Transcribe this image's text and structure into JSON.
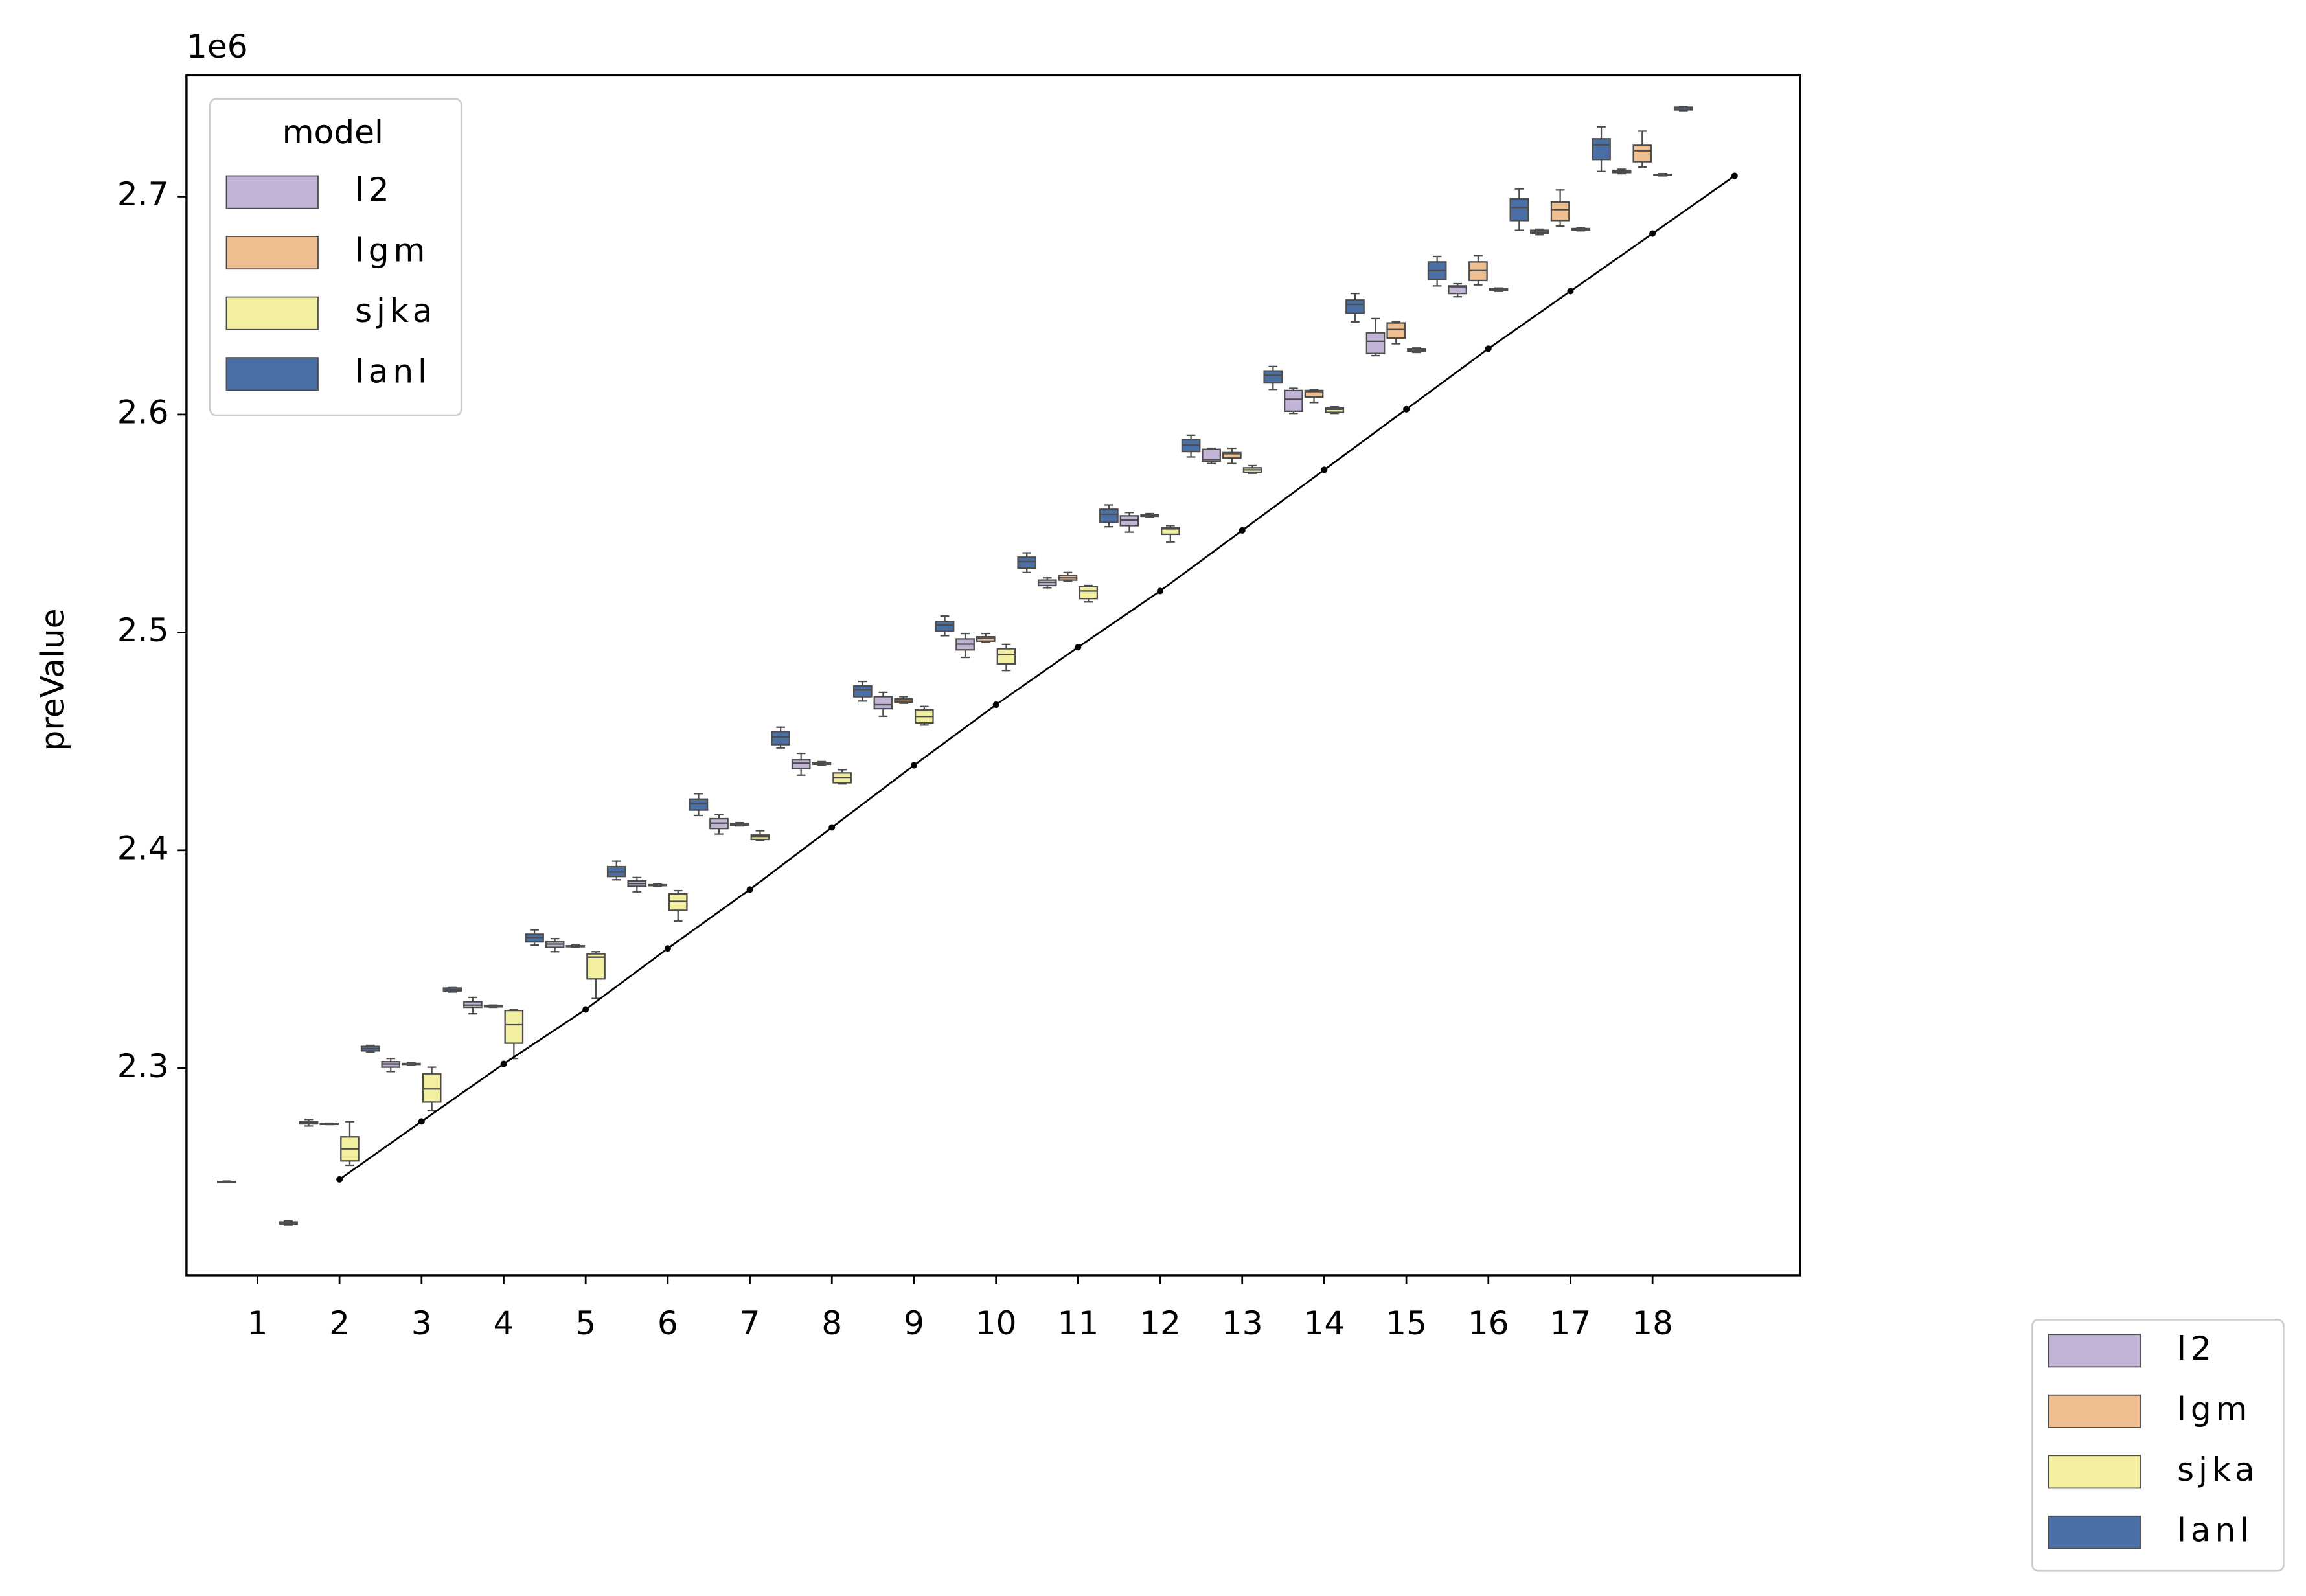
{
  "chart_data": {
    "type": "box",
    "ylabel": "preValue",
    "offset_text": "1e6",
    "categories": [
      1,
      2,
      3,
      4,
      5,
      6,
      7,
      8,
      9,
      10,
      11,
      12,
      13,
      14,
      15,
      16,
      17,
      18,
      null
    ],
    "ylim": [
      2.205,
      2.7556
    ],
    "yticks": [
      2.3,
      2.4,
      2.5,
      2.6,
      2.7
    ],
    "legends": [
      {
        "title": "model",
        "loc": "upper left"
      },
      {
        "loc": "outside lower right"
      }
    ],
    "series": [
      {
        "name": "l2",
        "color": "#c2b4d6",
        "values": [
          {
            "low": 2.2478,
            "q1": 2.248,
            "median": 2.248,
            "q3": 2.248,
            "high": 2.2482
          },
          {
            "low": 2.2735,
            "q1": 2.2745,
            "median": 2.275,
            "q3": 2.2755,
            "high": 2.2765
          },
          {
            "low": 2.2985,
            "q1": 2.3005,
            "median": 2.302,
            "q3": 2.303,
            "high": 2.3045
          },
          {
            "low": 2.325,
            "q1": 2.328,
            "median": 2.329,
            "q3": 2.3305,
            "high": 2.3325
          },
          {
            "low": 2.3535,
            "q1": 2.3555,
            "median": 2.357,
            "q3": 2.358,
            "high": 2.3595
          },
          {
            "low": 2.381,
            "q1": 2.3835,
            "median": 2.3847,
            "q3": 2.386,
            "high": 2.3875
          },
          {
            "low": 2.4075,
            "q1": 2.41,
            "median": 2.4125,
            "q3": 2.4145,
            "high": 2.4165
          },
          {
            "low": 2.4345,
            "q1": 2.4375,
            "median": 2.44,
            "q3": 2.4415,
            "high": 2.4445
          },
          {
            "low": 2.4615,
            "q1": 2.465,
            "median": 2.4668,
            "q3": 2.4705,
            "high": 2.4725
          },
          {
            "low": 2.4885,
            "q1": 2.492,
            "median": 2.4946,
            "q3": 2.497,
            "high": 2.4995
          },
          {
            "low": 2.5205,
            "q1": 2.5215,
            "median": 2.523,
            "q3": 2.524,
            "high": 2.525
          },
          {
            "low": 2.546,
            "q1": 2.549,
            "median": 2.5515,
            "q3": 2.5535,
            "high": 2.555
          },
          {
            "low": 2.5775,
            "q1": 2.5785,
            "median": 2.5793,
            "q3": 2.584,
            "high": 2.5845
          },
          {
            "low": 2.6005,
            "q1": 2.6015,
            "median": 2.607,
            "q3": 2.611,
            "high": 2.612
          },
          {
            "low": 2.627,
            "q1": 2.628,
            "median": 2.6336,
            "q3": 2.6375,
            "high": 2.644
          },
          {
            "low": 2.654,
            "q1": 2.6555,
            "median": 2.6586,
            "q3": 2.659,
            "high": 2.66
          },
          {
            "low": 2.6825,
            "q1": 2.683,
            "median": 2.6837,
            "q3": 2.6845,
            "high": 2.685
          },
          {
            "low": 2.7105,
            "q1": 2.711,
            "median": 2.7115,
            "q3": 2.712,
            "high": 2.7125
          },
          null
        ]
      },
      {
        "name": "lgm",
        "color": "#efbf91",
        "values": [
          null,
          {
            "low": 2.2742,
            "q1": 2.2744,
            "median": 2.2745,
            "q3": 2.2746,
            "high": 2.2748
          },
          {
            "low": 2.3015,
            "q1": 2.3018,
            "median": 2.302,
            "q3": 2.3022,
            "high": 2.3025
          },
          {
            "low": 2.328,
            "q1": 2.3282,
            "median": 2.3285,
            "q3": 2.3288,
            "high": 2.329
          },
          {
            "low": 2.3555,
            "q1": 2.3558,
            "median": 2.356,
            "q3": 2.3562,
            "high": 2.3565
          },
          {
            "low": 2.3835,
            "q1": 2.3838,
            "median": 2.384,
            "q3": 2.3842,
            "high": 2.3845
          },
          {
            "low": 2.4112,
            "q1": 2.4115,
            "median": 2.412,
            "q3": 2.4123,
            "high": 2.4127
          },
          {
            "low": 2.4392,
            "q1": 2.4395,
            "median": 2.44,
            "q3": 2.4403,
            "high": 2.4407
          },
          {
            "low": 2.4675,
            "q1": 2.468,
            "median": 2.469,
            "q3": 2.4695,
            "high": 2.4705
          },
          {
            "low": 2.4955,
            "q1": 2.496,
            "median": 2.4973,
            "q3": 2.498,
            "high": 2.4995
          },
          {
            "low": 2.5235,
            "q1": 2.524,
            "median": 2.525,
            "q3": 2.526,
            "high": 2.5275
          },
          {
            "low": 2.553,
            "q1": 2.5533,
            "median": 2.5536,
            "q3": 2.554,
            "high": 2.5545
          },
          {
            "low": 2.5775,
            "q1": 2.58,
            "median": 2.582,
            "q3": 2.5825,
            "high": 2.5845
          },
          {
            "low": 2.6055,
            "q1": 2.608,
            "median": 2.6105,
            "q3": 2.611,
            "high": 2.6115
          },
          {
            "low": 2.6325,
            "q1": 2.635,
            "median": 2.639,
            "q3": 2.642,
            "high": 2.6425
          },
          {
            "low": 2.6595,
            "q1": 2.6615,
            "median": 2.666,
            "q3": 2.67,
            "high": 2.673
          },
          {
            "low": 2.6865,
            "q1": 2.689,
            "median": 2.694,
            "q3": 2.6975,
            "high": 2.703
          },
          {
            "low": 2.7135,
            "q1": 2.716,
            "median": 2.721,
            "q3": 2.7235,
            "high": 2.73
          },
          null
        ]
      },
      {
        "name": "sjka",
        "color": "#f2f0a0",
        "values": [
          null,
          {
            "low": 2.2555,
            "q1": 2.2575,
            "median": 2.263,
            "q3": 2.2685,
            "high": 2.2755
          },
          {
            "low": 2.2805,
            "q1": 2.2845,
            "median": 2.2905,
            "q3": 2.2975,
            "high": 2.3005
          },
          {
            "low": 2.3045,
            "q1": 2.3115,
            "median": 2.32,
            "q3": 2.3265,
            "high": 2.327
          },
          {
            "low": 2.332,
            "q1": 2.341,
            "median": 2.351,
            "q3": 2.3525,
            "high": 2.3535
          },
          {
            "low": 2.3675,
            "q1": 2.3725,
            "median": 2.3766,
            "q3": 2.38,
            "high": 2.3815
          },
          {
            "low": 2.4045,
            "q1": 2.405,
            "median": 2.4064,
            "q3": 2.407,
            "high": 2.409
          },
          {
            "low": 2.4305,
            "q1": 2.431,
            "median": 2.4335,
            "q3": 2.4355,
            "high": 2.437
          },
          {
            "low": 2.4575,
            "q1": 2.4585,
            "median": 2.4614,
            "q3": 2.4645,
            "high": 2.466
          },
          {
            "low": 2.4825,
            "q1": 2.4855,
            "median": 2.4898,
            "q3": 2.4925,
            "high": 2.4945
          },
          {
            "low": 2.514,
            "q1": 2.5155,
            "median": 2.519,
            "q3": 2.521,
            "high": 2.5215
          },
          {
            "low": 2.5415,
            "q1": 2.545,
            "median": 2.5475,
            "q3": 2.548,
            "high": 2.549
          },
          {
            "low": 2.573,
            "q1": 2.5735,
            "median": 2.5746,
            "q3": 2.5755,
            "high": 2.5765
          },
          {
            "low": 2.6005,
            "q1": 2.601,
            "median": 2.6024,
            "q3": 2.603,
            "high": 2.6035
          },
          {
            "low": 2.6285,
            "q1": 2.629,
            "median": 2.6295,
            "q3": 2.63,
            "high": 2.6305
          },
          {
            "low": 2.6565,
            "q1": 2.657,
            "median": 2.6573,
            "q3": 2.6577,
            "high": 2.658
          },
          {
            "low": 2.6843,
            "q1": 2.6846,
            "median": 2.685,
            "q3": 2.6853,
            "high": 2.6856
          },
          {
            "low": 2.7095,
            "q1": 2.7098,
            "median": 2.71,
            "q3": 2.7102,
            "high": 2.7105
          },
          null
        ]
      },
      {
        "name": "lanl",
        "color": "#4a6fa5",
        "values": [
          {
            "low": 2.228,
            "q1": 2.2285,
            "median": 2.229,
            "q3": 2.2295,
            "high": 2.23
          },
          {
            "low": 2.3075,
            "q1": 2.308,
            "median": 2.309,
            "q3": 2.31,
            "high": 2.3105
          },
          {
            "low": 2.335,
            "q1": 2.3355,
            "median": 2.336,
            "q3": 2.3368,
            "high": 2.337
          },
          {
            "low": 2.3565,
            "q1": 2.358,
            "median": 2.36,
            "q3": 2.3615,
            "high": 2.3635
          },
          {
            "low": 2.3865,
            "q1": 2.388,
            "median": 2.39,
            "q3": 2.3925,
            "high": 2.395
          },
          {
            "low": 2.416,
            "q1": 2.4185,
            "median": 2.4214,
            "q3": 2.4235,
            "high": 2.426
          },
          {
            "low": 2.447,
            "q1": 2.4485,
            "median": 2.452,
            "q3": 2.4545,
            "high": 2.4565
          },
          {
            "low": 2.4685,
            "q1": 2.4705,
            "median": 2.4736,
            "q3": 2.4755,
            "high": 2.4775
          },
          {
            "low": 2.4985,
            "q1": 2.5005,
            "median": 2.5034,
            "q3": 2.505,
            "high": 2.5075
          },
          {
            "low": 2.5275,
            "q1": 2.5295,
            "median": 2.5325,
            "q3": 2.5345,
            "high": 2.5365
          },
          {
            "low": 2.5485,
            "q1": 2.5505,
            "median": 2.5542,
            "q3": 2.5565,
            "high": 2.5585
          },
          {
            "low": 2.5805,
            "q1": 2.583,
            "median": 2.586,
            "q3": 2.5885,
            "high": 2.5905
          },
          {
            "low": 2.6115,
            "q1": 2.6145,
            "median": 2.618,
            "q3": 2.62,
            "high": 2.622
          },
          {
            "low": 2.6425,
            "q1": 2.6465,
            "median": 2.6505,
            "q3": 2.6525,
            "high": 2.6555
          },
          {
            "low": 2.659,
            "q1": 2.662,
            "median": 2.666,
            "q3": 2.67,
            "high": 2.6725
          },
          {
            "low": 2.6845,
            "q1": 2.689,
            "median": 2.695,
            "q3": 2.699,
            "high": 2.7035
          },
          {
            "low": 2.7115,
            "q1": 2.717,
            "median": 2.7237,
            "q3": 2.7265,
            "high": 2.732
          },
          {
            "low": 2.7392,
            "q1": 2.7398,
            "median": 2.7407,
            "q3": 2.741,
            "high": 2.7413
          },
          null
        ]
      },
      {
        "type": "line",
        "color": "#000000",
        "values": [
          null,
          2.249,
          2.2756,
          2.302,
          2.327,
          2.355,
          2.382,
          2.4105,
          2.439,
          2.4668,
          2.4932,
          2.519,
          2.5468,
          2.5746,
          2.6024,
          2.6302,
          2.6566,
          2.683,
          2.7095
        ]
      }
    ]
  }
}
